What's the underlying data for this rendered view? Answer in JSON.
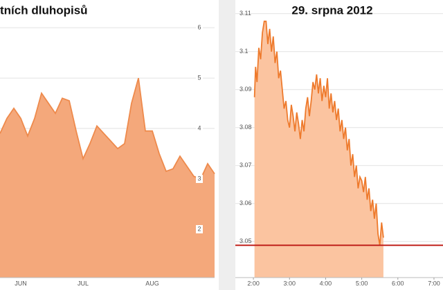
{
  "chart_data": [
    {
      "type": "area",
      "title": "tních dluhopisů",
      "categories": [
        null,
        null,
        null,
        "JUN",
        null,
        null,
        null,
        null,
        null,
        null,
        null,
        null,
        "JUL",
        null,
        null,
        null,
        null,
        null,
        null,
        null,
        null,
        null,
        "AUG",
        null,
        null,
        null,
        null,
        null,
        null,
        null,
        null,
        null
      ],
      "values": [
        3.9,
        4.2,
        4.4,
        4.2,
        3.85,
        4.2,
        4.7,
        4.5,
        4.3,
        4.6,
        4.55,
        3.95,
        3.4,
        3.7,
        4.05,
        3.9,
        3.75,
        3.6,
        3.7,
        4.5,
        5.0,
        3.95,
        3.95,
        3.5,
        3.15,
        3.2,
        3.45,
        3.25,
        3.05,
        3.0,
        3.3,
        3.1
      ],
      "color": "#ee8a4c",
      "fill": "#f4a87b",
      "ylim": [
        1.04,
        6.55
      ],
      "yticks": [
        2,
        3,
        4,
        5,
        6
      ],
      "grid": true
    },
    {
      "type": "area",
      "title": "29. srpna 2012",
      "x": [
        2.03,
        2.06,
        2.1,
        2.15,
        2.2,
        2.25,
        2.3,
        2.35,
        2.4,
        2.45,
        2.5,
        2.55,
        2.6,
        2.65,
        2.7,
        2.75,
        2.8,
        2.85,
        2.9,
        2.95,
        3.0,
        3.05,
        3.1,
        3.15,
        3.2,
        3.25,
        3.3,
        3.35,
        3.4,
        3.45,
        3.5,
        3.55,
        3.6,
        3.65,
        3.7,
        3.75,
        3.8,
        3.85,
        3.9,
        3.95,
        4.0,
        4.05,
        4.1,
        4.15,
        4.2,
        4.25,
        4.3,
        4.35,
        4.4,
        4.45,
        4.5,
        4.55,
        4.6,
        4.65,
        4.7,
        4.75,
        4.8,
        4.85,
        4.9,
        4.95,
        5.0,
        5.05,
        5.1,
        5.15,
        5.2,
        5.25,
        5.3,
        5.35,
        5.4,
        5.45,
        5.5,
        5.55,
        5.6
      ],
      "values": [
        3.088,
        3.096,
        3.092,
        3.101,
        3.098,
        3.105,
        3.108,
        3.108,
        3.102,
        3.106,
        3.1,
        3.104,
        3.097,
        3.1,
        3.093,
        3.095,
        3.09,
        3.085,
        3.087,
        3.082,
        3.08,
        3.086,
        3.083,
        3.079,
        3.084,
        3.081,
        3.077,
        3.082,
        3.079,
        3.085,
        3.088,
        3.083,
        3.087,
        3.092,
        3.09,
        3.094,
        3.089,
        3.093,
        3.087,
        3.091,
        3.088,
        3.093,
        3.085,
        3.089,
        3.084,
        3.087,
        3.082,
        3.085,
        3.079,
        3.082,
        3.077,
        3.08,
        3.074,
        3.077,
        3.07,
        3.073,
        3.067,
        3.07,
        3.064,
        3.067,
        3.066,
        3.063,
        3.067,
        3.061,
        3.064,
        3.058,
        3.061,
        3.056,
        3.06,
        3.052,
        3.049,
        3.055,
        3.051
      ],
      "color": "#ee7a2c",
      "fill": "#fbc4a0",
      "xlim": [
        1.5,
        7.25
      ],
      "xticks": [
        {
          "value": 2,
          "label": "2:00"
        },
        {
          "value": 3,
          "label": "3:00"
        },
        {
          "value": 4,
          "label": "4:00"
        },
        {
          "value": 5,
          "label": "5:00"
        },
        {
          "value": 6,
          "label": "6:00"
        },
        {
          "value": 7,
          "label": "7:00"
        }
      ],
      "ylim": [
        3.0405,
        3.1136
      ],
      "yticks": [
        3.05,
        3.06,
        3.07,
        3.08,
        3.09,
        3.1,
        3.11
      ],
      "grid": true,
      "reference_line": 3.049,
      "reference_color": "#c0201b"
    }
  ]
}
